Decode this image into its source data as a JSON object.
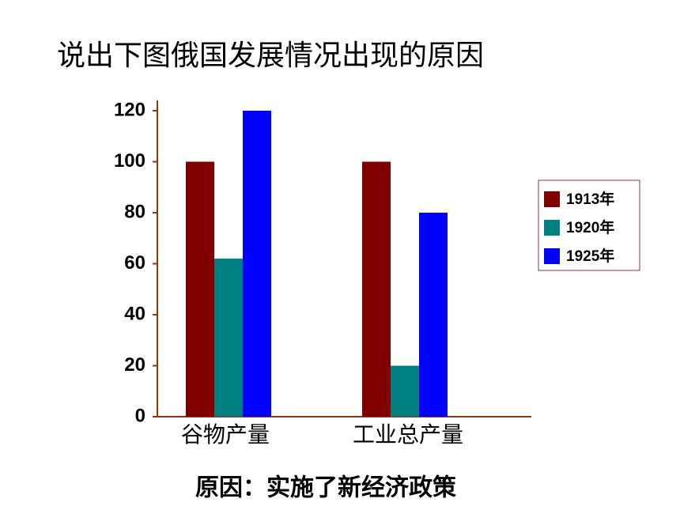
{
  "chart_data": {
    "type": "bar",
    "title": "说出下图俄国发展情况出现的原因",
    "annotation": "原因：实施了新经济政策",
    "categories": [
      "谷物产量",
      "工业总产量"
    ],
    "series": [
      {
        "name": "1913年",
        "color": "#800000",
        "values": [
          100,
          100
        ]
      },
      {
        "name": "1920年",
        "color": "#008080",
        "values": [
          62,
          20
        ]
      },
      {
        "name": "1925年",
        "color": "#0000ff",
        "values": [
          120,
          80
        ]
      }
    ],
    "ylim": [
      0,
      120
    ],
    "yticks": [
      0,
      20,
      40,
      60,
      80,
      100,
      120
    ],
    "grid": false,
    "legend": "right"
  }
}
